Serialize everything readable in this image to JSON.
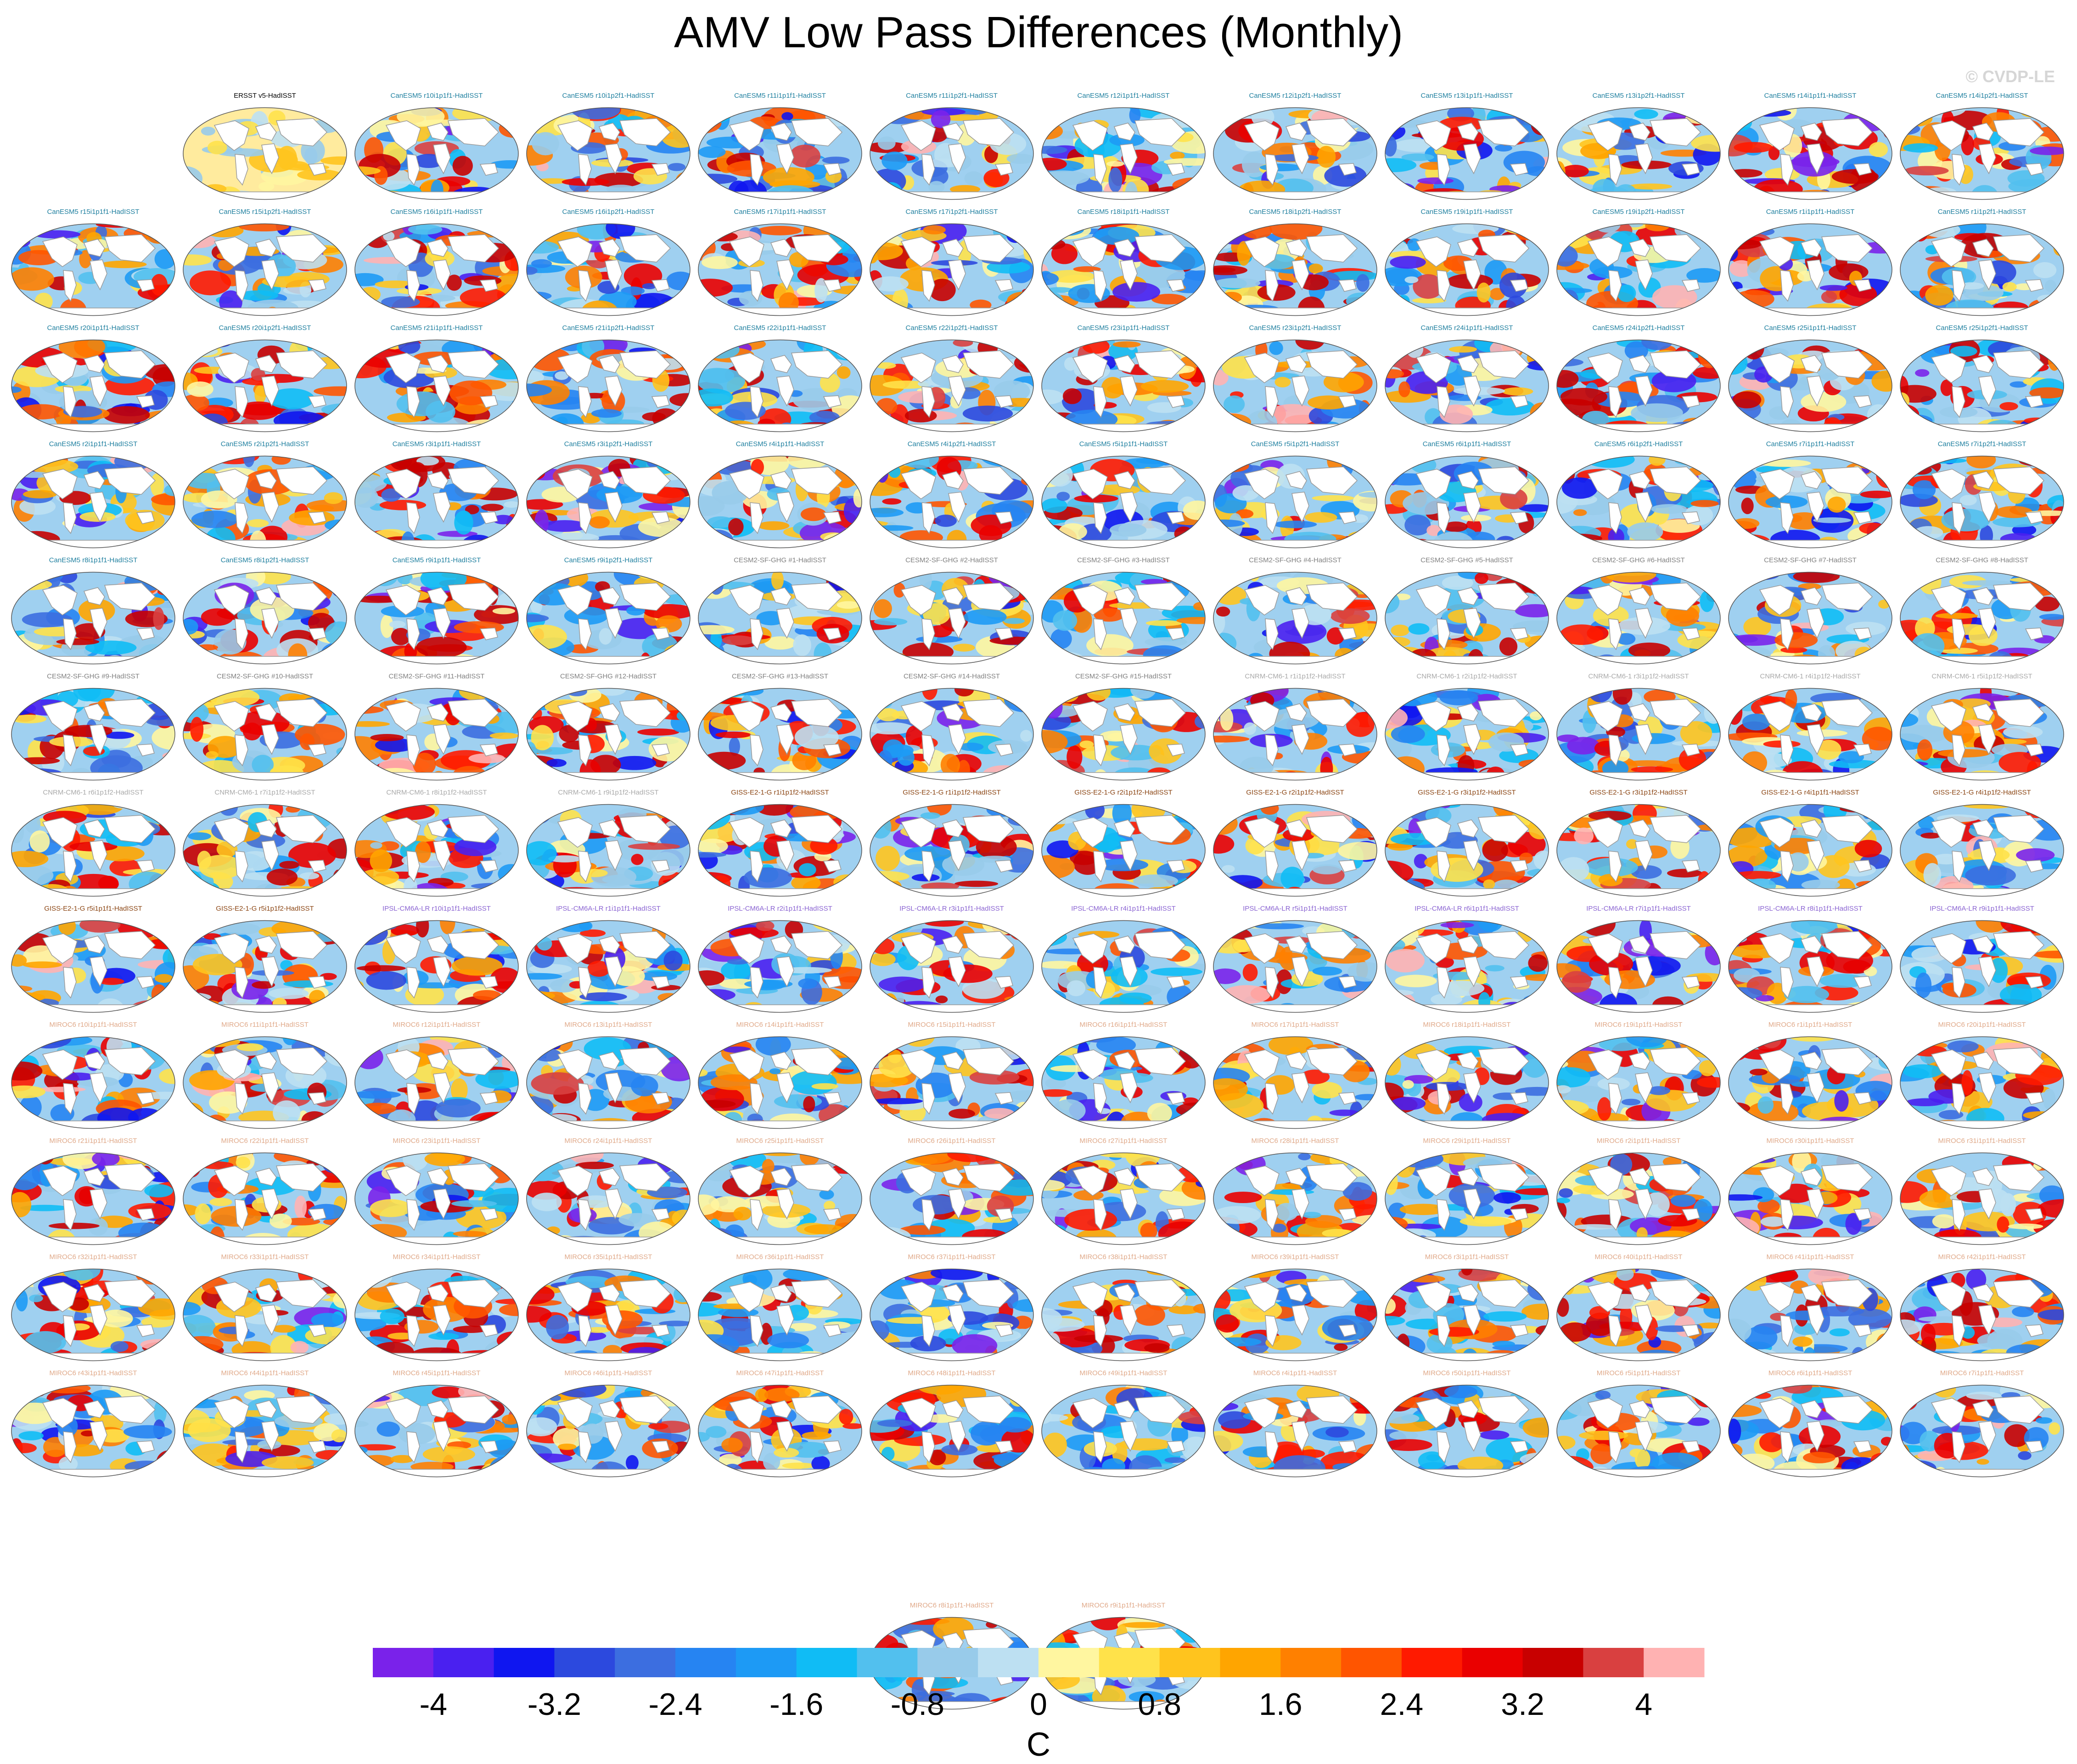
{
  "title": "AMV Low Pass Differences (Monthly)",
  "credit": "© CVDP-LE",
  "colors": {
    "CanESM5": "#1e7f9f",
    "CESM2-SF-GHG": "#808080",
    "CNRM-CM6-1": "#a9a9a9",
    "GISS-E2-1-G": "#8b4513",
    "IPSL-CM6A-LR": "#8a63d2",
    "MIROC6": "#e0a989",
    "obs": "#000000"
  },
  "colorbar": {
    "units": "C",
    "colors": [
      "#7a22ea",
      "#4a20f0",
      "#0f16f0",
      "#2c49de",
      "#3c6ee0",
      "#2684f2",
      "#1d9af5",
      "#10bcf5",
      "#52c0ee",
      "#98cbea",
      "#bde0f2",
      "#fff6a0",
      "#ffe24a",
      "#ffc41e",
      "#ffa500",
      "#ff8000",
      "#ff5500",
      "#ff1a00",
      "#ea0000",
      "#c80000",
      "#d94040",
      "#ffb2b2"
    ],
    "ticks": [
      "-4",
      "-3.2",
      "-2.4",
      "-1.6",
      "-0.8",
      "0",
      "0.8",
      "1.6",
      "2.4",
      "3.2",
      "4"
    ]
  },
  "chart_data": {
    "type": "heatmap",
    "title": "AMV Low Pass Differences (Monthly)",
    "units": "C",
    "vmin": -4.4,
    "vmax": 4.4,
    "panels": [
      "ERSST v5-HadISST",
      "CanESM5 r10i1p1f1-HadISST",
      "CanESM5 r10i1p2f1-HadISST",
      "CanESM5 r11i1p1f1-HadISST",
      "CanESM5 r11i1p2f1-HadISST",
      "CanESM5 r12i1p1f1-HadISST",
      "CanESM5 r12i1p2f1-HadISST",
      "CanESM5 r13i1p1f1-HadISST",
      "CanESM5 r13i1p2f1-HadISST",
      "CanESM5 r14i1p1f1-HadISST",
      "CanESM5 r14i1p2f1-HadISST",
      "CanESM5 r15i1p1f1-HadISST",
      "CanESM5 r15i1p2f1-HadISST",
      "CanESM5 r16i1p1f1-HadISST",
      "CanESM5 r16i1p2f1-HadISST",
      "CanESM5 r17i1p1f1-HadISST",
      "CanESM5 r17i1p2f1-HadISST",
      "CanESM5 r18i1p1f1-HadISST",
      "CanESM5 r18i1p2f1-HadISST",
      "CanESM5 r19i1p1f1-HadISST",
      "CanESM5 r19i1p2f1-HadISST",
      "CanESM5 r1i1p1f1-HadISST",
      "CanESM5 r1i1p2f1-HadISST",
      "CanESM5 r20i1p1f1-HadISST",
      "CanESM5 r20i1p2f1-HadISST",
      "CanESM5 r21i1p1f1-HadISST",
      "CanESM5 r21i1p2f1-HadISST",
      "CanESM5 r22i1p1f1-HadISST",
      "CanESM5 r22i1p2f1-HadISST",
      "CanESM5 r23i1p1f1-HadISST",
      "CanESM5 r23i1p2f1-HadISST",
      "CanESM5 r24i1p1f1-HadISST",
      "CanESM5 r24i1p2f1-HadISST",
      "CanESM5 r25i1p1f1-HadISST",
      "CanESM5 r25i1p2f1-HadISST",
      "CanESM5 r2i1p1f1-HadISST",
      "CanESM5 r2i1p2f1-HadISST",
      "CanESM5 r3i1p1f1-HadISST",
      "CanESM5 r3i1p2f1-HadISST",
      "CanESM5 r4i1p1f1-HadISST",
      "CanESM5 r4i1p2f1-HadISST",
      "CanESM5 r5i1p1f1-HadISST",
      "CanESM5 r5i1p2f1-HadISST",
      "CanESM5 r6i1p1f1-HadISST",
      "CanESM5 r6i1p2f1-HadISST",
      "CanESM5 r7i1p1f1-HadISST",
      "CanESM5 r7i1p2f1-HadISST",
      "CanESM5 r8i1p1f1-HadISST",
      "CanESM5 r8i1p2f1-HadISST",
      "CanESM5 r9i1p1f1-HadISST",
      "CanESM5 r9i1p2f1-HadISST",
      "CESM2-SF-GHG #1-HadISST",
      "CESM2-SF-GHG #2-HadISST",
      "CESM2-SF-GHG #3-HadISST",
      "CESM2-SF-GHG #4-HadISST",
      "CESM2-SF-GHG #5-HadISST",
      "CESM2-SF-GHG #6-HadISST",
      "CESM2-SF-GHG #7-HadISST",
      "CESM2-SF-GHG #8-HadISST",
      "CESM2-SF-GHG #9-HadISST",
      "CESM2-SF-GHG #10-HadISST",
      "CESM2-SF-GHG #11-HadISST",
      "CESM2-SF-GHG #12-HadISST",
      "CESM2-SF-GHG #13-HadISST",
      "CESM2-SF-GHG #14-HadISST",
      "CESM2-SF-GHG #15-HadISST",
      "CNRM-CM6-1 r1i1p1f2-HadISST",
      "CNRM-CM6-1 r2i1p1f2-HadISST",
      "CNRM-CM6-1 r3i1p1f2-HadISST",
      "CNRM-CM6-1 r4i1p1f2-HadISST",
      "CNRM-CM6-1 r5i1p1f2-HadISST",
      "CNRM-CM6-1 r6i1p1f2-HadISST",
      "CNRM-CM6-1 r7i1p1f2-HadISST",
      "CNRM-CM6-1 r8i1p1f2-HadISST",
      "CNRM-CM6-1 r9i1p1f2-HadISST",
      "GISS-E2-1-G r1i1p1f2-HadISST",
      "GISS-E2-1-G r1i1p1f2-HadISST",
      "GISS-E2-1-G r2i1p1f2-HadISST",
      "GISS-E2-1-G r2i1p1f2-HadISST",
      "GISS-E2-1-G r3i1p1f2-HadISST",
      "GISS-E2-1-G r3i1p1f2-HadISST",
      "GISS-E2-1-G r4i1p1f1-HadISST",
      "GISS-E2-1-G r4i1p1f2-HadISST",
      "GISS-E2-1-G r5i1p1f1-HadISST",
      "GISS-E2-1-G r5i1p1f2-HadISST",
      "IPSL-CM6A-LR r10i1p1f1-HadISST",
      "IPSL-CM6A-LR r1i1p1f1-HadISST",
      "IPSL-CM6A-LR r2i1p1f1-HadISST",
      "IPSL-CM6A-LR r3i1p1f1-HadISST",
      "IPSL-CM6A-LR r4i1p1f1-HadISST",
      "IPSL-CM6A-LR r5i1p1f1-HadISST",
      "IPSL-CM6A-LR r6i1p1f1-HadISST",
      "IPSL-CM6A-LR r7i1p1f1-HadISST",
      "IPSL-CM6A-LR r8i1p1f1-HadISST",
      "IPSL-CM6A-LR r9i1p1f1-HadISST",
      "MIROC6 r10i1p1f1-HadISST",
      "MIROC6 r11i1p1f1-HadISST",
      "MIROC6 r12i1p1f1-HadISST",
      "MIROC6 r13i1p1f1-HadISST",
      "MIROC6 r14i1p1f1-HadISST",
      "MIROC6 r15i1p1f1-HadISST",
      "MIROC6 r16i1p1f1-HadISST",
      "MIROC6 r17i1p1f1-HadISST",
      "MIROC6 r18i1p1f1-HadISST",
      "MIROC6 r19i1p1f1-HadISST",
      "MIROC6 r1i1p1f1-HadISST",
      "MIROC6 r20i1p1f1-HadISST",
      "MIROC6 r21i1p1f1-HadISST",
      "MIROC6 r22i1p1f1-HadISST",
      "MIROC6 r23i1p1f1-HadISST",
      "MIROC6 r24i1p1f1-HadISST",
      "MIROC6 r25i1p1f1-HadISST",
      "MIROC6 r26i1p1f1-HadISST",
      "MIROC6 r27i1p1f1-HadISST",
      "MIROC6 r28i1p1f1-HadISST",
      "MIROC6 r29i1p1f1-HadISST",
      "MIROC6 r2i1p1f1-HadISST",
      "MIROC6 r30i1p1f1-HadISST",
      "MIROC6 r31i1p1f1-HadISST",
      "MIROC6 r32i1p1f1-HadISST",
      "MIROC6 r33i1p1f1-HadISST",
      "MIROC6 r34i1p1f1-HadISST",
      "MIROC6 r35i1p1f1-HadISST",
      "MIROC6 r36i1p1f1-HadISST",
      "MIROC6 r37i1p1f1-HadISST",
      "MIROC6 r38i1p1f1-HadISST",
      "MIROC6 r39i1p1f1-HadISST",
      "MIROC6 r3i1p1f1-HadISST",
      "MIROC6 r40i1p1f1-HadISST",
      "MIROC6 r41i1p1f1-HadISST",
      "MIROC6 r42i1p1f1-HadISST",
      "MIROC6 r43i1p1f1-HadISST",
      "MIROC6 r44i1p1f1-HadISST",
      "MIROC6 r45i1p1f1-HadISST",
      "MIROC6 r46i1p1f1-HadISST",
      "MIROC6 r47i1p1f1-HadISST",
      "MIROC6 r48i1p1f1-HadISST",
      "MIROC6 r49i1p1f1-HadISST",
      "MIROC6 r4i1p1f1-HadISST",
      "MIROC6 r50i1p1f1-HadISST",
      "MIROC6 r5i1p1f1-HadISST",
      "MIROC6 r6i1p1f1-HadISST",
      "MIROC6 r7i1p1f1-HadISST",
      "MIROC6 r8i1p1f1-HadISST",
      "MIROC6 r9i1p1f1-HadISST"
    ]
  }
}
